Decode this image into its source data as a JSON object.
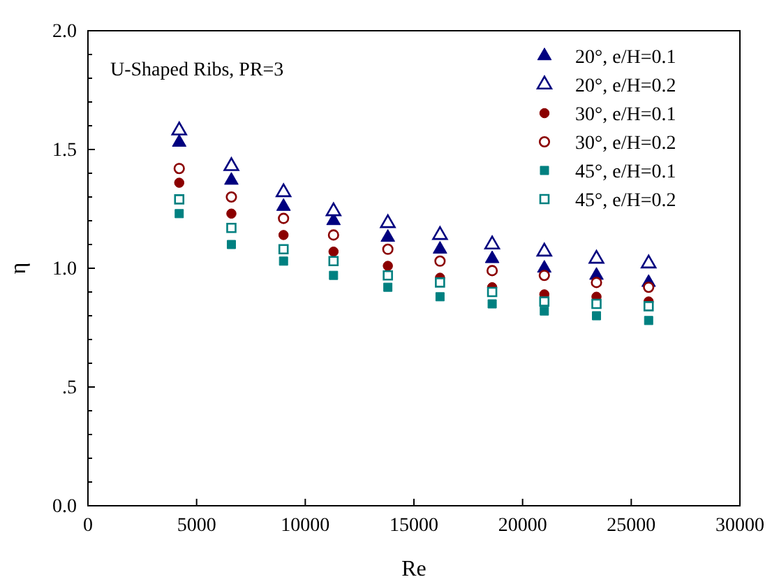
{
  "chart_data": {
    "type": "scatter",
    "xlabel": "Re",
    "ylabel": "η",
    "annotations": [
      "U-Shaped Ribs, PR=3"
    ],
    "x": [
      4200,
      6600,
      9000,
      11300,
      13800,
      16200,
      18600,
      21000,
      23400,
      25800
    ],
    "xlim": [
      0,
      30000
    ],
    "xticks": [
      0,
      5000,
      10000,
      15000,
      20000,
      25000,
      30000
    ],
    "ylim": [
      0,
      2
    ],
    "yticks": [
      {
        "value": 0,
        "label": "0.0"
      },
      {
        "value": 0.1,
        "label": null
      },
      {
        "value": 0.2,
        "label": null
      },
      {
        "value": 0.3,
        "label": null
      },
      {
        "value": 0.4,
        "label": null
      },
      {
        "value": 0.5,
        "label": ".5"
      },
      {
        "value": 0.6,
        "label": null
      },
      {
        "value": 0.7,
        "label": null
      },
      {
        "value": 0.8,
        "label": null
      },
      {
        "value": 0.9,
        "label": null
      },
      {
        "value": 1,
        "label": "1.0"
      },
      {
        "value": 1.1,
        "label": null
      },
      {
        "value": 1.2,
        "label": null
      },
      {
        "value": 1.3,
        "label": null
      },
      {
        "value": 1.4,
        "label": null
      },
      {
        "value": 1.5,
        "label": "1.5"
      },
      {
        "value": 1.6,
        "label": null
      },
      {
        "value": 1.7,
        "label": null
      },
      {
        "value": 1.8,
        "label": null
      },
      {
        "value": 1.9,
        "label": null
      },
      {
        "value": 2,
        "label": "2.0"
      }
    ],
    "grid": false,
    "legend": "top right",
    "series": [
      {
        "name": "20°, e/H=0.1",
        "color": "#00007f",
        "marker": "triangle",
        "values": [
          1.53,
          1.37,
          1.26,
          1.2,
          1.13,
          1.08,
          1.04,
          1.0,
          0.97,
          0.94
        ]
      },
      {
        "name": "20°, e/H=0.2",
        "color": "#00007f",
        "marker": "triangle-open",
        "values": [
          1.58,
          1.43,
          1.32,
          1.24,
          1.19,
          1.14,
          1.1,
          1.07,
          1.04,
          1.02
        ]
      },
      {
        "name": "30°, e/H=0.1",
        "color": "#8b0000",
        "marker": "circle",
        "values": [
          1.36,
          1.23,
          1.14,
          1.07,
          1.01,
          0.96,
          0.92,
          0.89,
          0.88,
          0.86
        ]
      },
      {
        "name": "30°, e/H=0.2",
        "color": "#8b0000",
        "marker": "circle-open",
        "values": [
          1.42,
          1.3,
          1.21,
          1.14,
          1.08,
          1.03,
          0.99,
          0.97,
          0.94,
          0.92
        ]
      },
      {
        "name": "45°, e/H=0.1",
        "color": "#008080",
        "marker": "square",
        "values": [
          1.23,
          1.1,
          1.03,
          0.97,
          0.92,
          0.88,
          0.85,
          0.82,
          0.8,
          0.78
        ]
      },
      {
        "name": "45°, e/H=0.2",
        "color": "#008080",
        "marker": "square-open",
        "values": [
          1.29,
          1.17,
          1.08,
          1.03,
          0.97,
          0.94,
          0.9,
          0.86,
          0.85,
          0.84
        ]
      }
    ]
  }
}
